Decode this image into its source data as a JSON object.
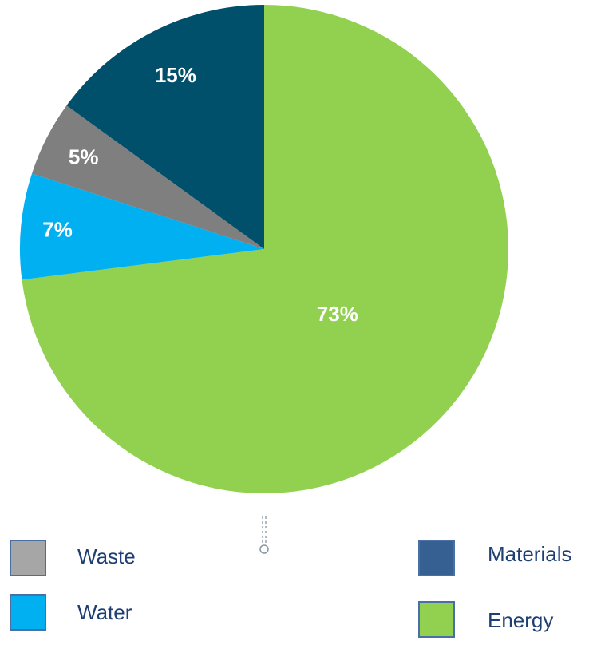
{
  "chart_data": {
    "type": "pie",
    "slices": [
      {
        "name": "Energy",
        "value": 73,
        "label": "73%",
        "color": "#92d050"
      },
      {
        "name": "Water",
        "value": 7,
        "label": "7%",
        "color": "#00b0f0"
      },
      {
        "name": "Waste",
        "value": 5,
        "label": "5%",
        "color": "#7f7f7f"
      },
      {
        "name": "Materials",
        "value": 15,
        "label": "15%",
        "color": "#004f6b"
      }
    ],
    "start_angle": "12 o'clock",
    "direction": "clockwise",
    "legend": {
      "placement": "bottom",
      "entries": [
        {
          "name": "Waste",
          "color": "#a6a6a6"
        },
        {
          "name": "Water",
          "color": "#00b0f0"
        },
        {
          "name": "Materials",
          "color": "#376092"
        },
        {
          "name": "Energy",
          "color": "#92d050"
        }
      ]
    }
  }
}
